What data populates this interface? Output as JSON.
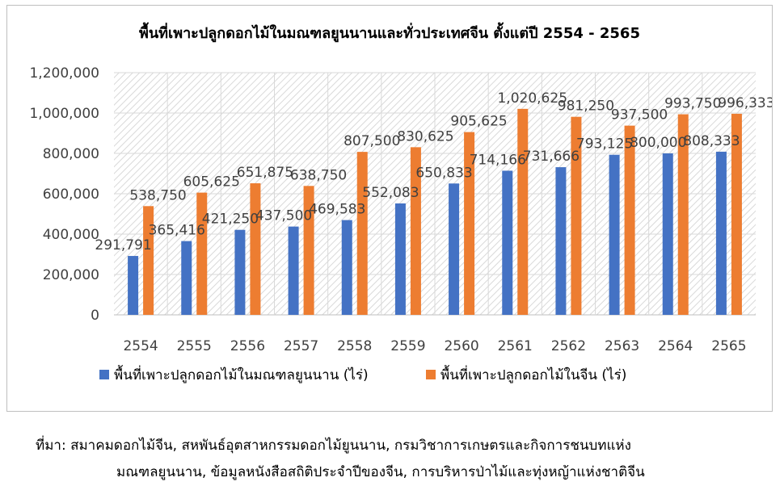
{
  "chart_data": {
    "type": "bar",
    "title": "พื้นที่เพาะปลูกดอกไม้ในมณฑลยูนนานและทั่วประเทศจีน ตั้งแต่ปี 2554 - 2565",
    "categories": [
      "2554",
      "2555",
      "2556",
      "2557",
      "2558",
      "2559",
      "2560",
      "2561",
      "2562",
      "2563",
      "2564",
      "2565"
    ],
    "series": [
      {
        "name": "พื้นที่เพาะปลูกดอกไม้ในมณฑลยูนนาน (ไร่)",
        "color": "#4472C4",
        "values": [
          291791,
          365416,
          421250,
          437500,
          469583,
          552083,
          650833,
          714166,
          731666,
          793125,
          800000,
          808333
        ],
        "labels": [
          "291,791",
          "365,416",
          "421,250",
          "437,500",
          "469,583",
          "552,083",
          "650,833",
          "714,166",
          "731,666",
          "793,125",
          "800,000",
          "808,333"
        ]
      },
      {
        "name": "พื้นที่เพาะปลูกดอกไม้ในจีน (ไร่)",
        "color": "#ED7D31",
        "values": [
          538750,
          605625,
          651875,
          638750,
          807500,
          830625,
          905625,
          1020625,
          981250,
          937500,
          993750,
          996333
        ],
        "labels": [
          "538,750",
          "605,625",
          "651,875",
          "638,750",
          "807,500",
          "830,625",
          "905,625",
          "1,020,625",
          "981,250",
          "937,500",
          "993,750",
          "996,333"
        ]
      }
    ],
    "ylim": [
      0,
      1200000
    ],
    "yticks": [
      0,
      200000,
      400000,
      600000,
      800000,
      1000000,
      1200000
    ],
    "ytick_labels": [
      "0",
      "200,000",
      "400,000",
      "600,000",
      "800,000",
      "1,000,000",
      "1,200,000"
    ],
    "grid": true,
    "legend_position": "bottom"
  },
  "source_note": {
    "line1": "ที่มา: สมาคมดอกไม้จีน, สหพันธ์อุตสาหกรรมดอกไม้ยูนนาน, กรมวิชาการเกษตรและกิจการชนบทแห่ง",
    "line2": "มณฑลยูนนาน, ข้อมูลหนังสือสถิติประจำปีของจีน, การบริหารป่าไม้และทุ่งหญ้าแห่งชาติจีน"
  }
}
